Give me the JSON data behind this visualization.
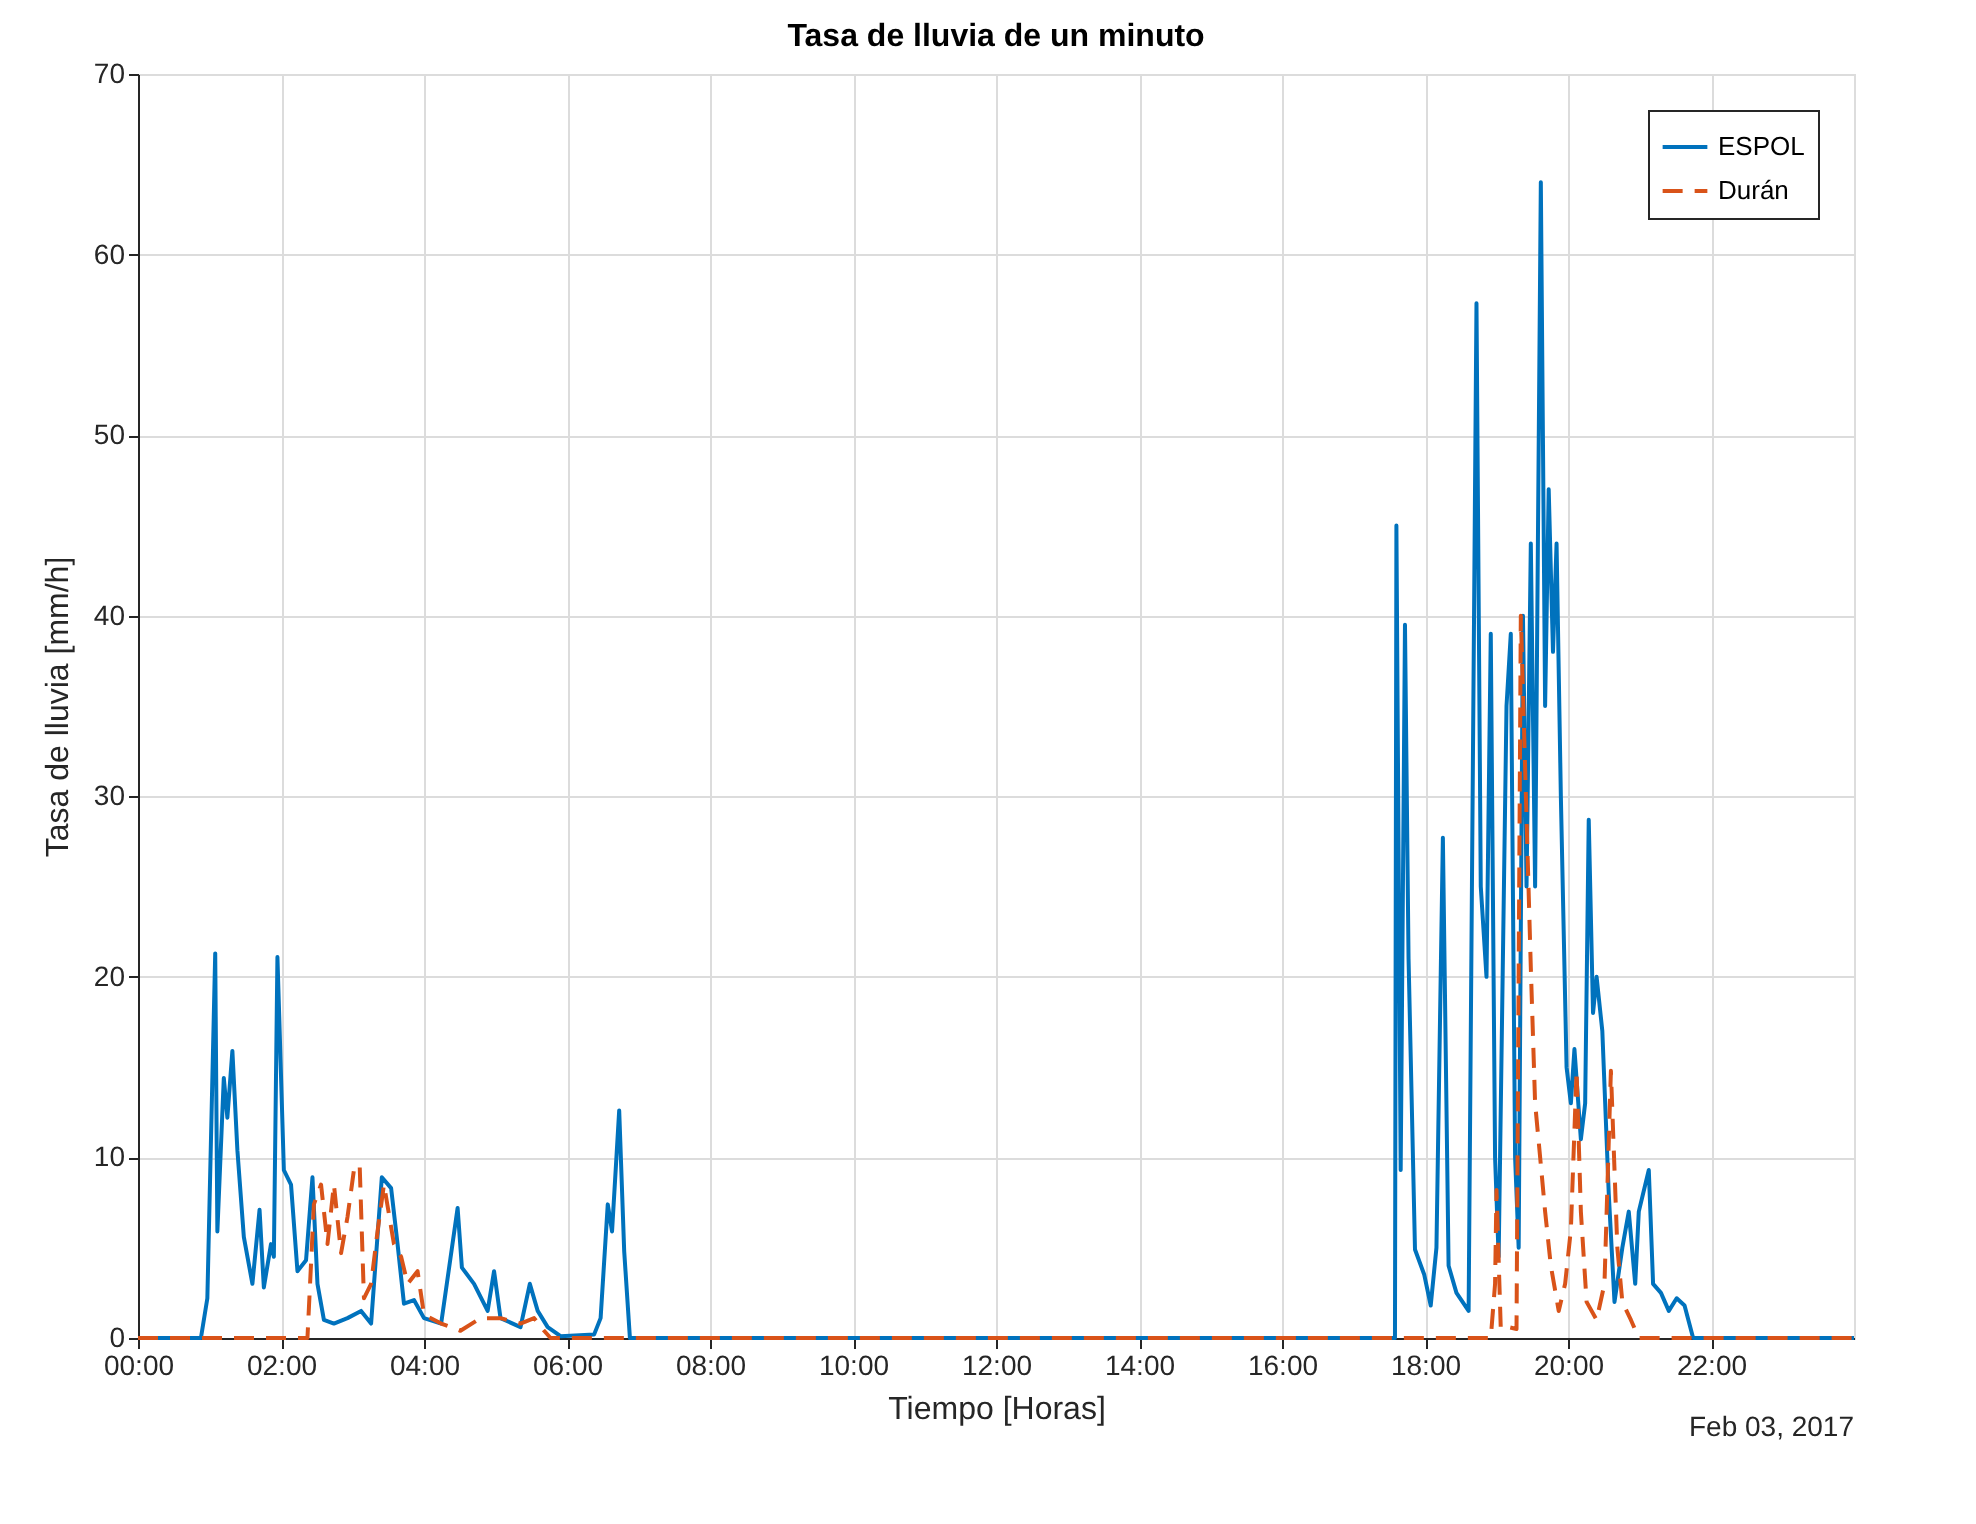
{
  "chart_data": {
    "type": "line",
    "title": "Tasa de lluvia de un minuto",
    "xlabel": "Tiempo [Horas]",
    "ylabel": "Tasa de lluvia [mm/h]",
    "annotations": [
      "Feb 03, 2017"
    ],
    "xlim": [
      0,
      24
    ],
    "ylim": [
      0,
      70
    ],
    "xticks": [
      {
        "value": 0,
        "label": "00:00"
      },
      {
        "value": 2,
        "label": "02:00"
      },
      {
        "value": 4,
        "label": "04:00"
      },
      {
        "value": 6,
        "label": "06:00"
      },
      {
        "value": 8,
        "label": "08:00"
      },
      {
        "value": 10,
        "label": "10:00"
      },
      {
        "value": 12,
        "label": "12:00"
      },
      {
        "value": 14,
        "label": "14:00"
      },
      {
        "value": 16,
        "label": "16:00"
      },
      {
        "value": 18,
        "label": "18:00"
      },
      {
        "value": 20,
        "label": "20:00"
      },
      {
        "value": 22,
        "label": "22:00"
      }
    ],
    "yticks": [
      0,
      10,
      20,
      30,
      40,
      50,
      60,
      70
    ],
    "grid": true,
    "legend": "top right",
    "marker": "none",
    "series": [
      {
        "name": "ESPOL",
        "color": "#0072bd",
        "line_style": "solid",
        "x": [
          0,
          0.88,
          0.97,
          1.08,
          1.11,
          1.2,
          1.25,
          1.32,
          1.39,
          1.48,
          1.6,
          1.7,
          1.76,
          1.86,
          1.9,
          1.95,
          2.04,
          2.14,
          2.23,
          2.35,
          2.44,
          2.51,
          2.6,
          2.74,
          2.93,
          3.12,
          3.26,
          3.41,
          3.54,
          3.63,
          3.72,
          3.86,
          4.0,
          4.24,
          4.47,
          4.53,
          4.7,
          4.89,
          4.98,
          5.07,
          5.35,
          5.48,
          5.59,
          5.73,
          5.91,
          6.38,
          6.47,
          6.57,
          6.63,
          6.73,
          6.8,
          6.88,
          17.55,
          17.58,
          17.6,
          17.66,
          17.72,
          17.77,
          17.86,
          17.99,
          18.08,
          18.16,
          18.25,
          18.33,
          18.44,
          18.61,
          18.72,
          18.78,
          18.86,
          18.92,
          18.98,
          19.03,
          19.14,
          19.2,
          19.26,
          19.31,
          19.37,
          19.42,
          19.48,
          19.54,
          19.62,
          19.68,
          19.73,
          19.79,
          19.84,
          19.9,
          19.98,
          20.04,
          20.09,
          20.18,
          20.24,
          20.29,
          20.35,
          20.4,
          20.48,
          20.57,
          20.65,
          20.76,
          20.85,
          20.94,
          20.99,
          21.13,
          21.19,
          21.3,
          21.41,
          21.52,
          21.63,
          21.75,
          24
        ],
        "values": [
          0,
          0,
          2.2,
          21.3,
          5.9,
          14.4,
          12.2,
          15.9,
          10.4,
          5.6,
          3.0,
          7.1,
          2.8,
          5.2,
          4.5,
          21.1,
          9.3,
          8.5,
          3.7,
          4.3,
          8.9,
          3.0,
          1.0,
          0.8,
          1.1,
          1.5,
          0.8,
          8.9,
          8.3,
          5.2,
          1.9,
          2.1,
          1.1,
          0.8,
          7.2,
          3.9,
          3.0,
          1.5,
          3.7,
          1.1,
          0.6,
          3.0,
          1.5,
          0.6,
          0.1,
          0.2,
          1.1,
          7.4,
          5.9,
          12.6,
          4.8,
          0,
          0,
          0,
          45,
          9.3,
          39.5,
          21,
          4.9,
          3.5,
          1.8,
          5,
          27.7,
          4,
          2.5,
          1.5,
          57.3,
          25,
          20,
          39,
          10,
          4.5,
          35,
          39,
          10,
          5,
          40,
          25,
          44,
          25,
          64,
          35,
          47,
          38,
          44,
          30,
          15,
          13,
          16,
          11,
          13,
          28.7,
          18,
          20,
          17,
          8,
          2,
          5,
          7,
          3,
          7,
          9.3,
          3,
          2.5,
          1.5,
          2.2,
          1.8,
          0,
          0
        ]
      },
      {
        "name": "Durán",
        "color": "#d95319",
        "line_style": "dashed",
        "x": [
          0,
          2.37,
          2.46,
          2.56,
          2.65,
          2.74,
          2.84,
          2.93,
          3.02,
          3.1,
          3.16,
          3.26,
          3.35,
          3.44,
          3.58,
          3.68,
          3.77,
          3.91,
          4.0,
          4.24,
          4.51,
          4.79,
          5.07,
          5.35,
          5.54,
          5.68,
          5.77,
          18.92,
          18.98,
          19.0,
          19.06,
          19.17,
          19.28,
          19.34,
          19.42,
          19.48,
          19.54,
          19.62,
          19.68,
          19.76,
          19.87,
          19.96,
          20.04,
          20.12,
          20.18,
          20.26,
          20.4,
          20.51,
          20.6,
          20.69,
          20.76,
          20.88,
          20.99,
          24
        ],
        "values": [
          0,
          0,
          7.4,
          8.5,
          5.2,
          8.5,
          4.7,
          6.7,
          9.3,
          9.6,
          2.2,
          3.0,
          5.9,
          8.5,
          5.2,
          4.5,
          3.0,
          3.7,
          1.3,
          0.8,
          0.4,
          1.1,
          1.1,
          0.8,
          1.1,
          0.4,
          0,
          0,
          3,
          8.2,
          0.5,
          0.6,
          0.5,
          40,
          28.8,
          20.5,
          13,
          9.6,
          7,
          4,
          1.5,
          3,
          6,
          14.8,
          7,
          2,
          1,
          3,
          14.8,
          5,
          2,
          1,
          0,
          0
        ]
      }
    ]
  }
}
